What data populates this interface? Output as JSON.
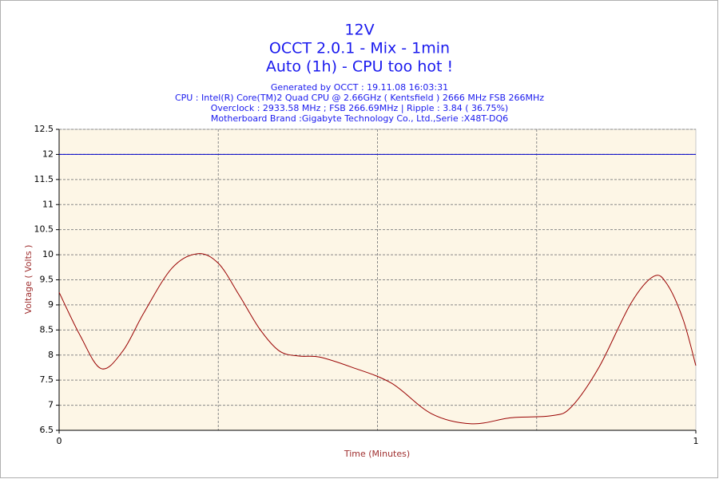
{
  "chart_data": {
    "type": "line",
    "title_lines": [
      "12V",
      "OCCT 2.0.1 - Mix - 1min",
      "Auto (1h) - CPU too hot !"
    ],
    "subtitle_lines": [
      "Generated by OCCT : 19.11.08 16:03:31",
      "CPU : Intel(R) Core(TM)2 Quad CPU @ 2.66GHz ( Kentsfield ) 2666 MHz FSB 266MHz",
      "Overclock : 2933.58 MHz ; FSB 266.69MHz | Ripple : 3.84 ( 36.75%)",
      "Motherboard Brand :Gigabyte Technology Co., Ltd.,Serie :X48T-DQ6"
    ],
    "x_label": "Time (Minutes)",
    "y_label": "Voltage ( Volts )",
    "xlim": [
      0,
      1
    ],
    "xticks": [
      0,
      1
    ],
    "xgrid": [
      0.25,
      0.5,
      0.75
    ],
    "ylim": [
      6.5,
      12.5
    ],
    "yticks": [
      6.5,
      7,
      7.5,
      8,
      8.5,
      9,
      9.5,
      10,
      10.5,
      11,
      11.5,
      12,
      12.5
    ],
    "grid": true,
    "series": [
      {
        "color": "#0000cc",
        "x": [
          0,
          1
        ],
        "values": [
          12,
          12
        ]
      },
      {
        "color": "#990000",
        "x": [
          0,
          0.033,
          0.066,
          0.1,
          0.133,
          0.177,
          0.217,
          0.25,
          0.283,
          0.315,
          0.346,
          0.377,
          0.409,
          0.459,
          0.522,
          0.585,
          0.648,
          0.71,
          0.773,
          0.804,
          0.848,
          0.898,
          0.934,
          0.955,
          0.98,
          1
        ],
        "values": [
          9.25,
          8.39,
          7.73,
          8.08,
          8.84,
          9.73,
          10.02,
          9.83,
          9.19,
          8.52,
          8.08,
          7.98,
          7.96,
          7.76,
          7.44,
          6.83,
          6.63,
          6.75,
          6.79,
          6.96,
          7.76,
          9.03,
          9.57,
          9.41,
          8.71,
          7.79
        ]
      }
    ]
  }
}
